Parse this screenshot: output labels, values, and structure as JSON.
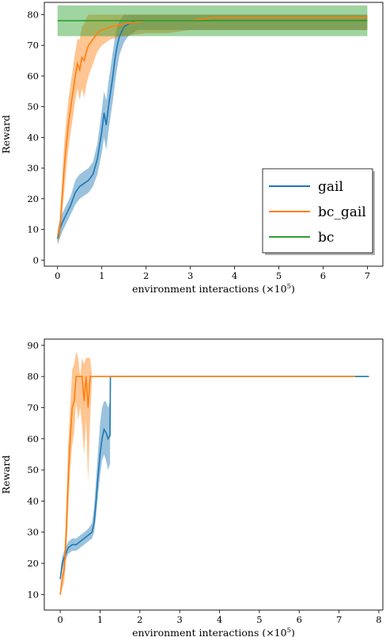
{
  "chart_data": [
    {
      "type": "line",
      "xlabel": "environment interactions (×10",
      "xlabel_sup": "5",
      "xlabel_end": ")",
      "ylabel": "Reward",
      "xlim": [
        -0.3,
        7.35
      ],
      "ylim": [
        -2,
        84
      ],
      "xticks": [
        0,
        1,
        2,
        3,
        4,
        5,
        6,
        7
      ],
      "yticks": [
        0,
        10,
        20,
        30,
        40,
        50,
        60,
        70,
        80
      ],
      "grid": false,
      "legend_position": "lower-right",
      "series": [
        {
          "name": "gail",
          "color": "#1f77b4",
          "x": [
            0,
            0.05,
            0.1,
            0.2,
            0.3,
            0.4,
            0.5,
            0.6,
            0.7,
            0.8,
            0.9,
            1.0,
            1.05,
            1.1,
            1.15,
            1.2,
            1.25,
            1.3,
            1.35,
            1.4,
            1.5,
            1.6,
            1.8,
            2.0,
            2.5,
            3.0,
            3.5,
            4.0,
            4.5,
            5.0,
            5.5,
            6.0,
            6.5,
            7.0
          ],
          "y": [
            7,
            10,
            12,
            15,
            18,
            22,
            24,
            25,
            26,
            28,
            33,
            42,
            48,
            44,
            50,
            55,
            60,
            66,
            70,
            73,
            76,
            77,
            78,
            78,
            78,
            78,
            78,
            78,
            78,
            78,
            78,
            78,
            78,
            78
          ],
          "lower": [
            5,
            7,
            9,
            12,
            15,
            18,
            20,
            21,
            22,
            24,
            28,
            35,
            40,
            36,
            42,
            47,
            52,
            58,
            63,
            67,
            71,
            73,
            75,
            75,
            75,
            75,
            75,
            75,
            75,
            75,
            75,
            75,
            75,
            75
          ],
          "upper": [
            9,
            13,
            15,
            18,
            21,
            26,
            28,
            29,
            30,
            32,
            38,
            49,
            55,
            52,
            58,
            63,
            68,
            73,
            76,
            78,
            80,
            80,
            80,
            80,
            80,
            80,
            80,
            80,
            80,
            80,
            80,
            80,
            80,
            80
          ]
        },
        {
          "name": "bc_gail",
          "color": "#ff7f0e",
          "x": [
            0,
            0.05,
            0.1,
            0.15,
            0.2,
            0.25,
            0.3,
            0.35,
            0.4,
            0.45,
            0.5,
            0.55,
            0.6,
            0.65,
            0.7,
            0.8,
            0.9,
            1.0,
            1.2,
            1.5,
            2.0,
            2.5,
            3.0,
            3.5,
            4.0,
            4.5,
            5.0,
            5.5,
            6.0,
            6.5,
            7.0
          ],
          "y": [
            8,
            10,
            20,
            30,
            38,
            45,
            50,
            55,
            60,
            64,
            62,
            66,
            65,
            68,
            70,
            72,
            74,
            75,
            76,
            77,
            78,
            78,
            78,
            79,
            79,
            79,
            79,
            79,
            79,
            79,
            79
          ],
          "lower": [
            6,
            7,
            14,
            22,
            30,
            37,
            42,
            47,
            52,
            56,
            52,
            56,
            53,
            57,
            60,
            64,
            68,
            70,
            72,
            73,
            74,
            74,
            75,
            75,
            75,
            75,
            75,
            75,
            75,
            75,
            75
          ],
          "upper": [
            10,
            13,
            26,
            38,
            46,
            53,
            58,
            63,
            68,
            72,
            72,
            76,
            77,
            79,
            80,
            80,
            80,
            80,
            80,
            80,
            80,
            80,
            80,
            80,
            80,
            80,
            80,
            80,
            80,
            80,
            80
          ]
        },
        {
          "name": "bc",
          "color": "#2ca02c",
          "x": [
            0,
            7
          ],
          "y": [
            78,
            78
          ],
          "lower": [
            73,
            73
          ],
          "upper": [
            83,
            83
          ]
        }
      ]
    },
    {
      "type": "line",
      "xlabel": "environment interactions (×10",
      "xlabel_sup": "5",
      "xlabel_end": ")",
      "ylabel": "Reward",
      "xlim": [
        -0.4,
        8.1
      ],
      "ylim": [
        5,
        92
      ],
      "xticks": [
        0,
        1,
        2,
        3,
        4,
        5,
        6,
        7,
        8
      ],
      "yticks": [
        10,
        20,
        30,
        40,
        50,
        60,
        70,
        80,
        90
      ],
      "grid": false,
      "series": [
        {
          "name": "",
          "color": "#1f77b4",
          "x": [
            0,
            0.05,
            0.1,
            0.2,
            0.3,
            0.4,
            0.5,
            0.6,
            0.7,
            0.8,
            0.85,
            0.9,
            0.95,
            1.0,
            1.05,
            1.1,
            1.15,
            1.2,
            1.25,
            1.26,
            2,
            3,
            4,
            5,
            6,
            7,
            7.75
          ],
          "y": [
            15,
            20,
            22,
            25,
            26,
            26,
            27,
            28,
            29,
            30,
            33,
            40,
            48,
            55,
            60,
            63,
            62,
            60,
            61,
            80,
            80,
            80,
            80,
            80,
            80,
            80,
            80
          ],
          "lower": [
            14,
            18,
            20,
            23,
            24,
            24,
            25,
            26,
            27,
            28,
            30,
            35,
            42,
            48,
            53,
            55,
            53,
            50,
            52,
            80,
            80,
            80,
            80,
            80,
            80,
            80,
            80
          ],
          "upper": [
            16,
            22,
            24,
            27,
            28,
            28,
            29,
            30,
            31,
            33,
            38,
            47,
            56,
            65,
            70,
            72,
            72,
            70,
            72,
            80,
            80,
            80,
            80,
            80,
            80,
            80,
            80
          ]
        },
        {
          "name": "",
          "color": "#ff7f0e",
          "x": [
            0,
            0.05,
            0.1,
            0.15,
            0.2,
            0.25,
            0.3,
            0.35,
            0.4,
            0.45,
            0.5,
            0.55,
            0.6,
            0.65,
            0.7,
            0.75,
            0.8,
            0.85,
            1,
            2,
            3,
            4,
            5,
            6,
            7,
            7.4
          ],
          "y": [
            10,
            15,
            18,
            30,
            47,
            60,
            70,
            72,
            80,
            80,
            80,
            80,
            72,
            80,
            70,
            80,
            80,
            80,
            80,
            80,
            80,
            80,
            80,
            80,
            80,
            80
          ],
          "lower": [
            9,
            12,
            14,
            22,
            36,
            50,
            58,
            62,
            72,
            66,
            70,
            64,
            55,
            66,
            46,
            66,
            80,
            80,
            80,
            80,
            80,
            80,
            80,
            80,
            80,
            80
          ],
          "upper": [
            11,
            18,
            22,
            38,
            58,
            70,
            82,
            84,
            88,
            86,
            80,
            86,
            84,
            86,
            86,
            86,
            80,
            80,
            80,
            80,
            80,
            80,
            80,
            80,
            80,
            80
          ]
        }
      ]
    }
  ]
}
